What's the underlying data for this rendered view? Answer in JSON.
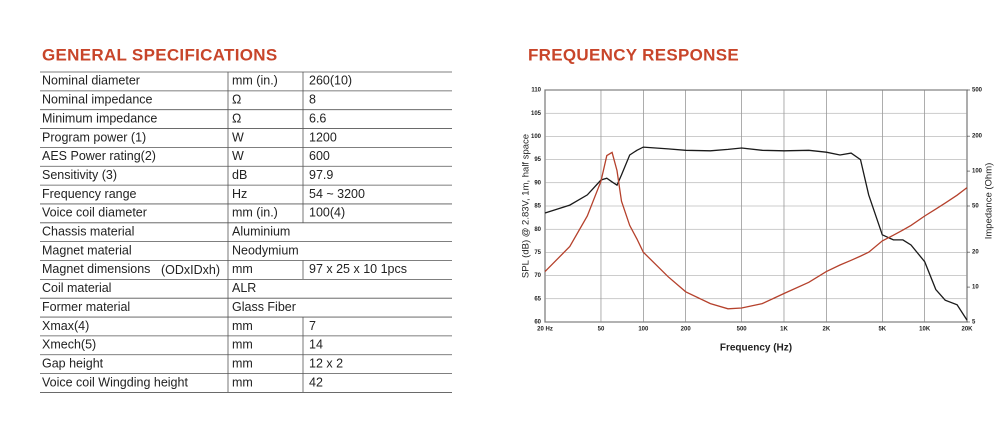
{
  "specs": {
    "title": "GENERAL SPECIFICATIONS",
    "rows": [
      [
        "Nominal diameter",
        "mm (in.)",
        "260(10)"
      ],
      [
        "Nominal impedance",
        "Ω",
        "8"
      ],
      [
        "Minimum impedance",
        "Ω",
        "6.6"
      ],
      [
        "Program power (1)",
        "W",
        "1200"
      ],
      [
        "AES Power rating(2)",
        "W",
        "600"
      ],
      [
        "Sensitivity (3)",
        "dB",
        "97.9"
      ],
      [
        "Frequency range",
        "Hz",
        "54 ~ 3200"
      ],
      [
        "Voice coil diameter",
        "mm (in.)",
        "100(4)"
      ],
      [
        "Chassis material",
        "Aluminium"
      ],
      [
        "Magnet  material",
        "Neodymium"
      ],
      [
        "Magnet dimensions",
        "mm",
        "97 x 25 x 10    1pcs"
      ],
      [
        "Coil material",
        "ALR"
      ],
      [
        "Former material",
        "Glass Fiber"
      ],
      [
        "Xmax(4)",
        "mm",
        "7"
      ],
      [
        "Xmech(5)",
        "mm",
        "14"
      ],
      [
        "Gap height",
        "mm",
        "12 x 2"
      ],
      [
        "Voice coil Wingding height",
        "mm",
        "42"
      ]
    ],
    "magnet_note": "(ODxIDxh)"
  },
  "chart_data": {
    "type": "line",
    "title": "FREQUENCY RESPONSE",
    "x_label": "Frequency (Hz)",
    "y_label": "SPL (dB) @ 2.83V, 1m, half space",
    "y2_label": "Impedance (Ohm)",
    "x": [
      20,
      30,
      40,
      50,
      55,
      60,
      65,
      70,
      80,
      90,
      100,
      150,
      200,
      300,
      400,
      500,
      700,
      1000,
      1500,
      2000,
      2500,
      3000,
      3500,
      4000,
      5000,
      6000,
      7000,
      8000,
      10000,
      12000,
      14000,
      17000,
      20000
    ],
    "x_log": true,
    "y2_log": true,
    "xlim": [
      20,
      20000
    ],
    "xticks": [
      {
        "value": 20,
        "label": "20 Hz"
      },
      50,
      100,
      200,
      500,
      {
        "value": 1000,
        "label": "1K"
      },
      {
        "value": 2000,
        "label": "2K"
      },
      {
        "value": 5000,
        "label": "5K"
      },
      {
        "value": 10000,
        "label": "10K"
      },
      {
        "value": 20000,
        "label": "20K"
      }
    ],
    "ylim": [
      60,
      110
    ],
    "yticks": [
      60,
      65,
      70,
      75,
      80,
      85,
      90,
      95,
      100,
      105,
      110
    ],
    "y2lim": [
      5,
      500
    ],
    "y2ticks": [
      5,
      10,
      20,
      50,
      100,
      200,
      500
    ],
    "grid": true,
    "series": [
      {
        "color": "#1a1a1a",
        "values": [
          83.5,
          85.2,
          87.4,
          90.6,
          91,
          90.2,
          89.5,
          91.7,
          96,
          97,
          97.7,
          97.3,
          97,
          96.9,
          97.2,
          97.5,
          97,
          96.9,
          97,
          96.6,
          96,
          96.4,
          95,
          87.4,
          78.8,
          77.7,
          77.7,
          76.6,
          73,
          67,
          64.7,
          63.7,
          60.4
        ]
      },
      {
        "color": "#b5412c",
        "axis": "y2",
        "values": [
          13.6,
          22.4,
          41,
          82,
          136,
          145,
          101,
          55,
          34,
          26,
          20,
          12.3,
          9.1,
          7.2,
          6.5,
          6.6,
          7.2,
          8.8,
          11,
          13.6,
          15.5,
          17,
          18.5,
          20,
          25,
          28,
          31,
          34,
          41,
          47,
          53,
          62,
          72
        ]
      }
    ]
  }
}
